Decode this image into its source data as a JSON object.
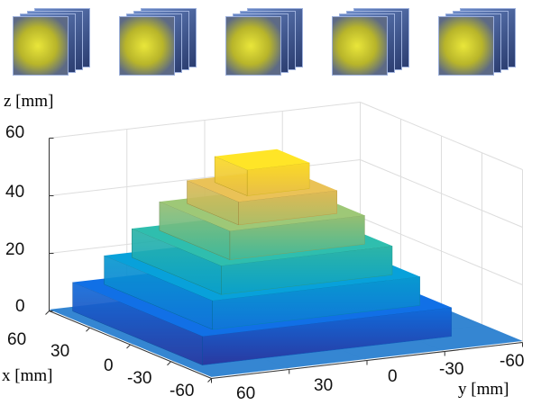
{
  "thumbnails": {
    "count": 5,
    "accent": "#e0dc30"
  },
  "chart_data": {
    "type": "surface",
    "title": "",
    "xlabel": "x [mm]",
    "ylabel": "y [mm]",
    "zlabel": "z [mm]",
    "xlim": [
      -60,
      60
    ],
    "ylim": [
      -60,
      60
    ],
    "zlim": [
      0,
      60
    ],
    "x_ticks": [
      "60",
      "30",
      "0",
      "-30",
      "-60"
    ],
    "y_ticks": [
      "60",
      "30",
      "0",
      "-30",
      "-60"
    ],
    "z_ticks": [
      "0",
      "20",
      "40",
      "60"
    ],
    "grid": true,
    "colormap": "parula",
    "tiers": [
      {
        "half_width_mm": 48,
        "top_z_mm": 10
      },
      {
        "half_width_mm": 40,
        "top_z_mm": 20
      },
      {
        "half_width_mm": 33,
        "top_z_mm": 30
      },
      {
        "half_width_mm": 26,
        "top_z_mm": 40
      },
      {
        "half_width_mm": 19,
        "top_z_mm": 48
      },
      {
        "half_width_mm": 12,
        "top_z_mm": 57
      }
    ]
  }
}
